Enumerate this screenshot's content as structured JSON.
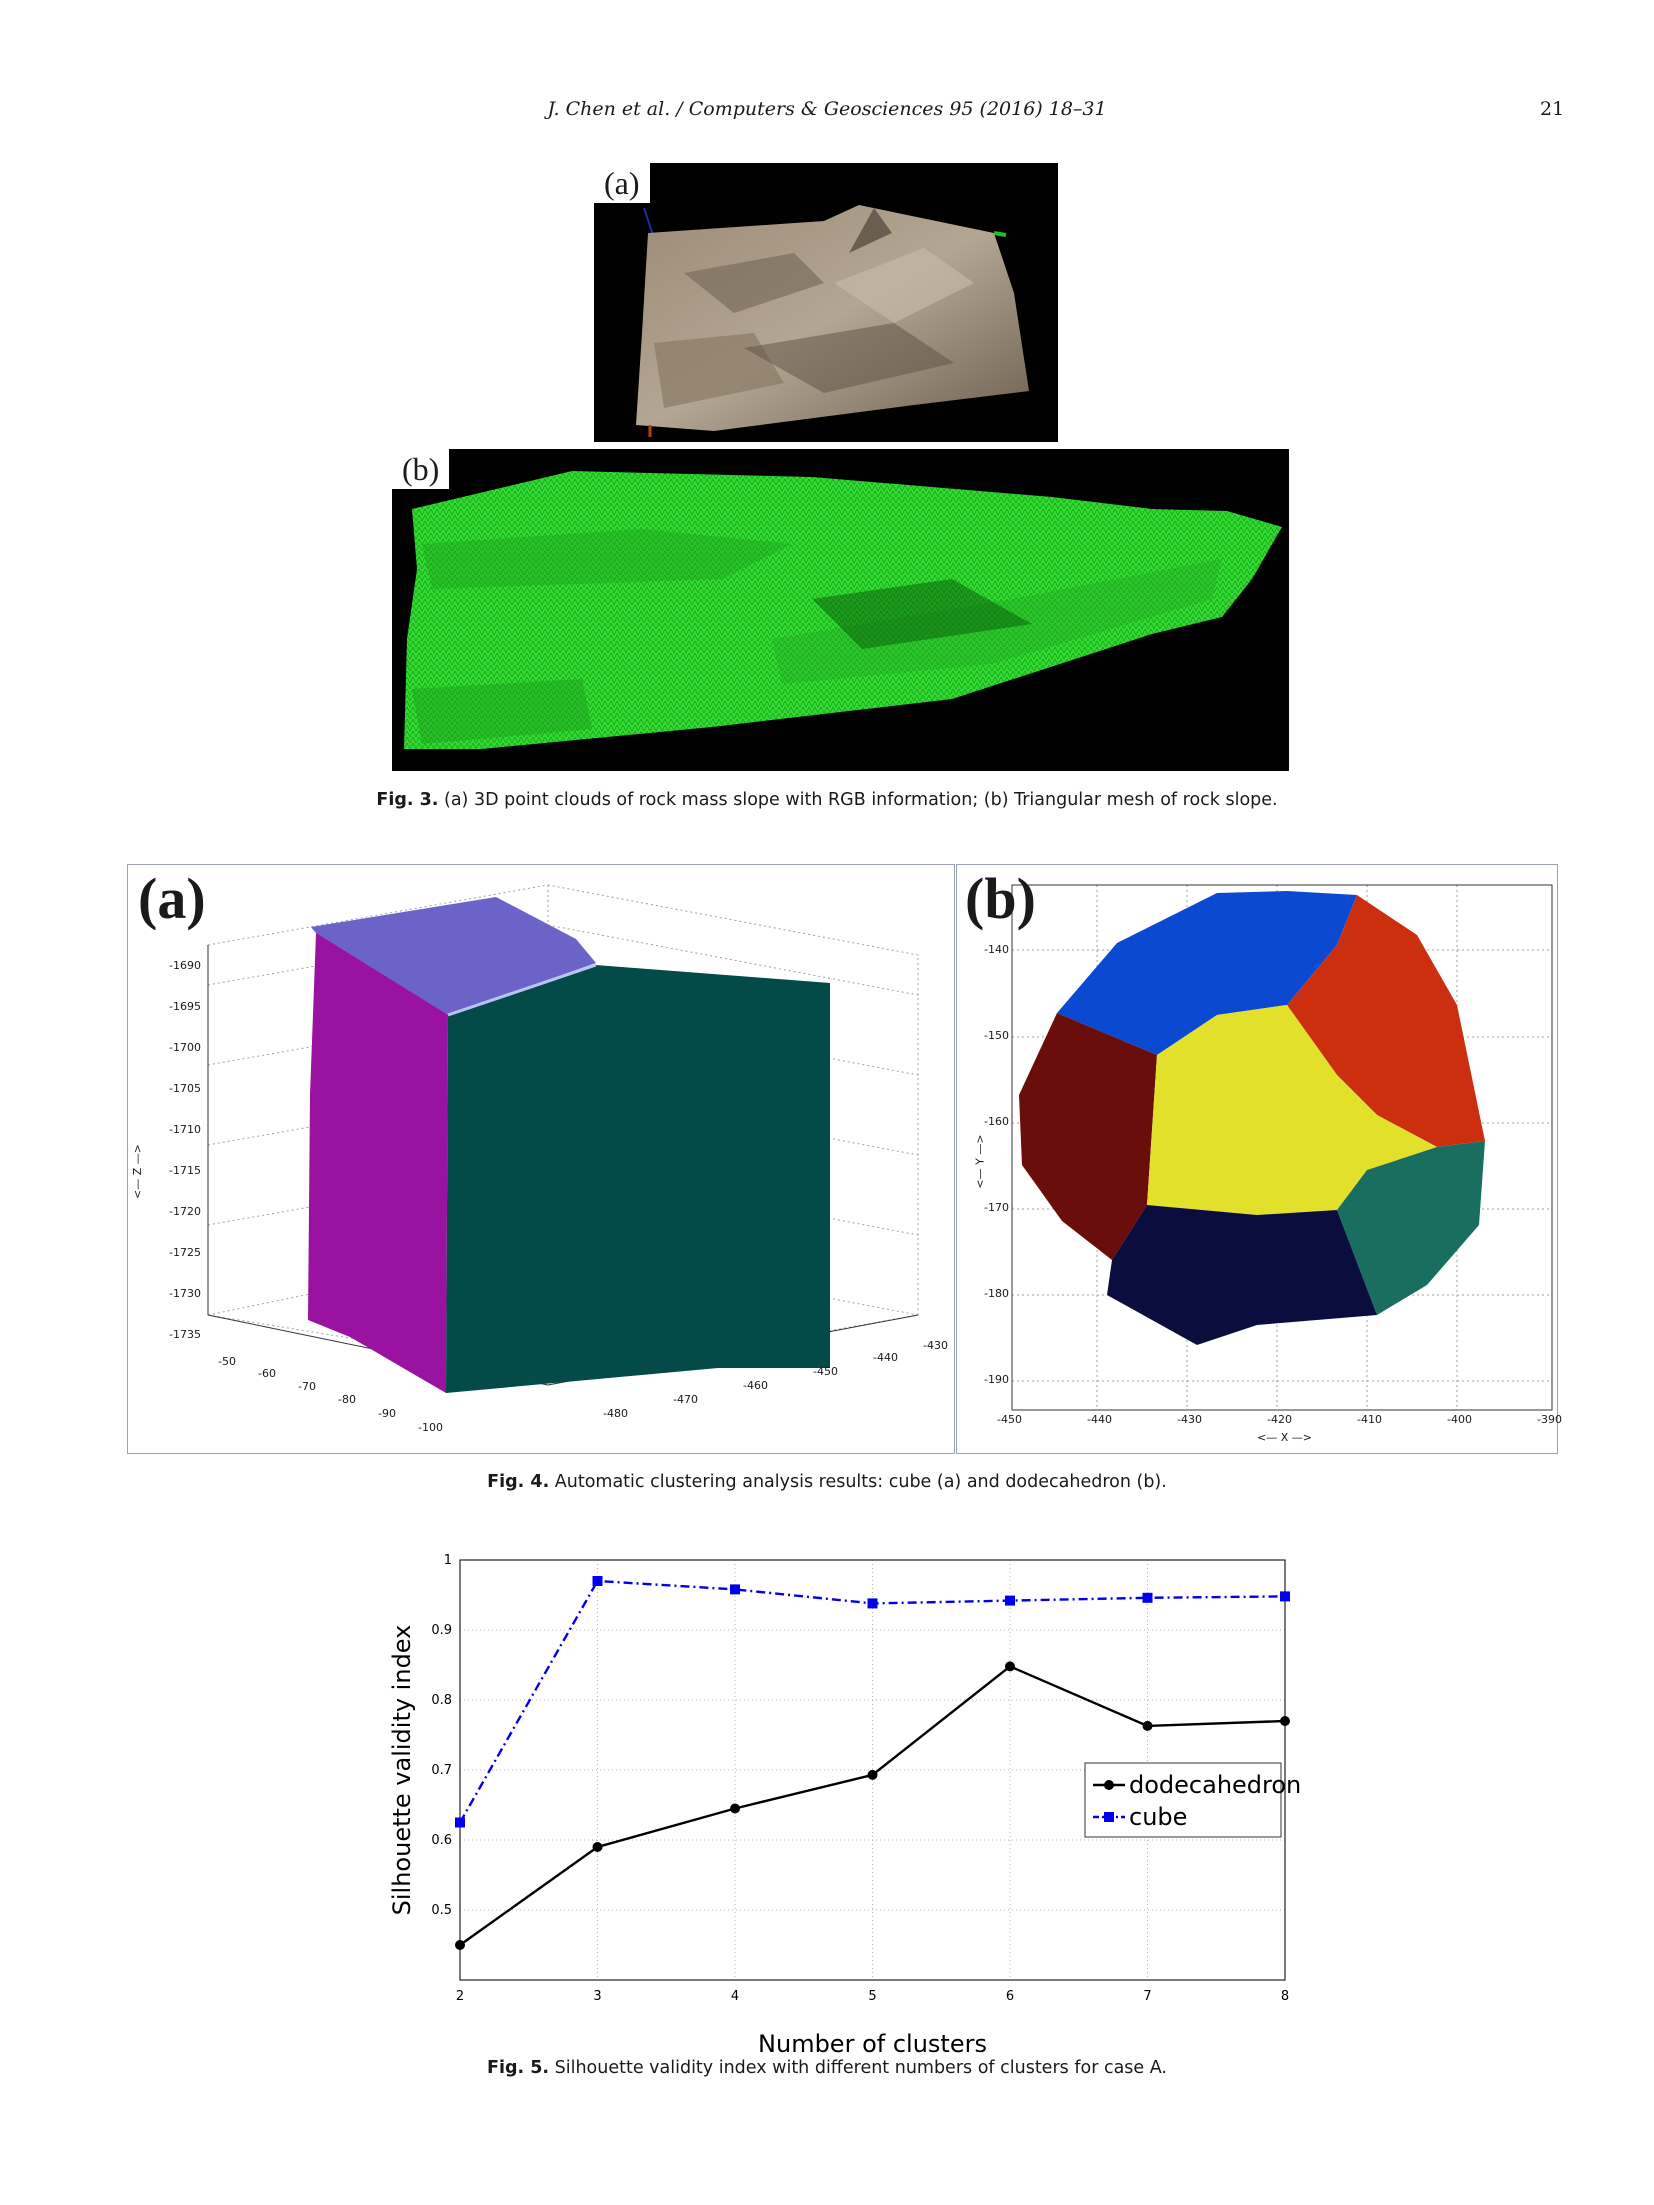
{
  "header": {
    "running_head": "J. Chen et al. / Computers & Geosciences 95 (2016) 18–31",
    "page_number": "21"
  },
  "fig3": {
    "label_a": "(a)",
    "label_b": "(b)",
    "caption_label": "Fig. 3.",
    "caption_text": " (a) 3D point clouds of rock mass slope with RGB information; (b) Triangular mesh of rock slope."
  },
  "fig4": {
    "label_a": "(a)",
    "label_b": "(b)",
    "caption_label": "Fig. 4.",
    "caption_text": " Automatic clustering analysis results: cube (a) and dodecahedron (b).",
    "a_z_ticks": [
      "-1690",
      "-1695",
      "-1700",
      "-1705",
      "-1710",
      "-1715",
      "-1720",
      "-1725",
      "-1730",
      "-1735"
    ],
    "a_z_label": "<— Z —>",
    "a_left_ticks": [
      "-50",
      "-60",
      "-70",
      "-80",
      "-90",
      "-100"
    ],
    "a_right_ticks": [
      "-480",
      "-470",
      "-460",
      "-450",
      "-440",
      "-430"
    ],
    "b_y_ticks": [
      "-140",
      "-150",
      "-160",
      "-170",
      "-180",
      "-190"
    ],
    "b_x_ticks": [
      "-450",
      "-440",
      "-430",
      "-420",
      "-410",
      "-400",
      "-390"
    ],
    "b_y_label": "<— Y —>",
    "b_x_label": "<— X —>"
  },
  "fig5": {
    "caption_label": "Fig. 5.",
    "caption_text": " Silhouette validity index with different numbers of clusters for case A."
  },
  "chart_data": {
    "type": "line",
    "title": "",
    "xlabel": "Number of clusters",
    "ylabel": "Silhouette validity index",
    "x": [
      2,
      3,
      4,
      5,
      6,
      7,
      8
    ],
    "xlim": [
      2,
      8
    ],
    "ylim": [
      0.4,
      1
    ],
    "yticks": [
      "0.5",
      "0.6",
      "0.7",
      "0.8",
      "0.9",
      "1"
    ],
    "xticks": [
      "2",
      "3",
      "4",
      "5",
      "6",
      "7",
      "8"
    ],
    "grid": true,
    "legend_position": "right",
    "series": [
      {
        "name": "dodecahedron",
        "color": "#000000",
        "line_style": "solid",
        "values": [
          0.45,
          0.59,
          0.645,
          0.693,
          0.848,
          0.763,
          0.77
        ]
      },
      {
        "name": "cube",
        "color": "#0000ee",
        "line_style": "dash-dot",
        "values": [
          0.625,
          0.97,
          0.958,
          0.938,
          0.942,
          0.946,
          0.948
        ]
      }
    ]
  }
}
